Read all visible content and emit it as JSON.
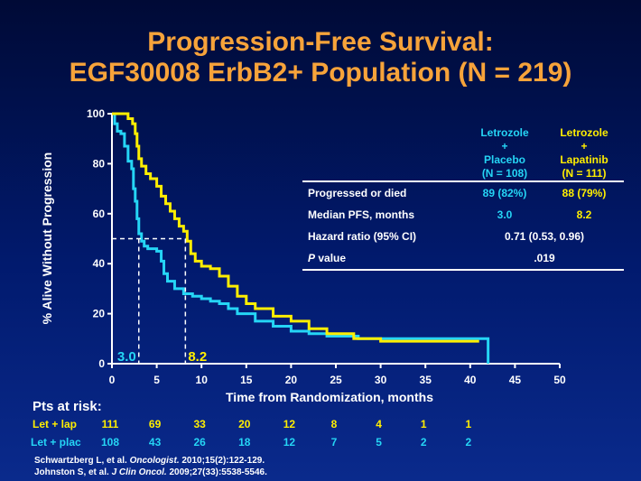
{
  "title": {
    "line1": "Progression-Free Survival:",
    "line2": "EGF30008 ErbB2+ Population (N = 219)"
  },
  "colors": {
    "placebo": "#25d5f5",
    "lapatinib": "#ffee00",
    "title": "#f7a33a"
  },
  "chart_data": {
    "type": "line",
    "xlabel": "Time from Randomization, months",
    "ylabel": "% Alive Without Progression",
    "xlim": [
      0,
      50
    ],
    "ylim": [
      0,
      100
    ],
    "xticks": [
      "0",
      "5",
      "10",
      "15",
      "20",
      "25",
      "30",
      "35",
      "40",
      "45",
      "50"
    ],
    "yticks": [
      "0",
      "20",
      "40",
      "60",
      "80",
      "100"
    ],
    "grid": false,
    "median_line_y": 50,
    "medians": [
      {
        "label": "3.0",
        "x": 3.0,
        "series": "Letrozole + Placebo"
      },
      {
        "label": "8.2",
        "x": 8.2,
        "series": "Letrozole + Lapatinib"
      }
    ],
    "series": [
      {
        "name": "Letrozole + Placebo",
        "color": "#25d5f5",
        "x": [
          0,
          0.3,
          0.6,
          1.0,
          1.4,
          1.8,
          2.2,
          2.4,
          2.6,
          2.8,
          3.0,
          3.3,
          3.6,
          4.0,
          4.5,
          5.0,
          5.5,
          5.8,
          6.2,
          7.0,
          8.0,
          9.0,
          10.0,
          11.0,
          12.0,
          13.0,
          14.0,
          16.0,
          18.0,
          20.0,
          22.0,
          24.0,
          27.5,
          30.0,
          35.0,
          40.0,
          42.0,
          42.0
        ],
        "y": [
          100,
          96,
          93,
          92,
          87,
          81,
          78,
          70,
          65,
          58,
          52,
          49,
          47,
          46,
          46,
          45,
          41,
          36,
          33,
          30,
          28,
          27,
          26,
          25,
          24,
          22,
          20,
          17,
          15,
          13,
          12,
          11,
          10,
          10,
          10,
          10,
          10,
          0
        ]
      },
      {
        "name": "Letrozole + Lapatinib",
        "color": "#ffee00",
        "x": [
          0,
          1.0,
          1.8,
          2.3,
          2.6,
          2.8,
          3.0,
          3.3,
          3.8,
          4.3,
          5.0,
          5.5,
          6.0,
          6.5,
          7.0,
          7.5,
          8.0,
          8.4,
          8.8,
          9.3,
          10.0,
          11.0,
          12.0,
          13.0,
          14.0,
          15.0,
          16.0,
          18.0,
          20.0,
          22.0,
          24.0,
          27.0,
          30.0,
          35.0,
          40.0,
          41.0
        ],
        "y": [
          100,
          100,
          98,
          96,
          92,
          87,
          82,
          79,
          76,
          74,
          71,
          67,
          64,
          61,
          58,
          55,
          53,
          49,
          44,
          41,
          39,
          38,
          35,
          31,
          27,
          24,
          22,
          19,
          17,
          14,
          12,
          10,
          9,
          9,
          9,
          9
        ]
      }
    ]
  },
  "stats_table": {
    "header": {
      "col1": [
        "Letrozole",
        "+",
        "Placebo",
        "(N = 108)"
      ],
      "col2": [
        "Letrozole",
        "+",
        "Lapatinib",
        "(N = 111)"
      ]
    },
    "rows": [
      {
        "label": "Progressed or died",
        "v1": "89 (82%)",
        "v2": "88 (79%)"
      },
      {
        "label": "Median PFS, months",
        "v1": "3.0",
        "v2": "8.2"
      },
      {
        "label": "Hazard ratio (95% CI)",
        "merged": "0.71 (0.53, 0.96)"
      },
      {
        "label_italic": "P",
        "label_rest": " value",
        "merged": ".019"
      }
    ]
  },
  "risk": {
    "title": "Pts at risk:",
    "lap_label": "Let + lap",
    "plac_label": "Let + plac",
    "lap_values": [
      "111",
      "69",
      "33",
      "20",
      "12",
      "8",
      "4",
      "1",
      "1"
    ],
    "plac_values": [
      "108",
      "43",
      "26",
      "18",
      "12",
      "7",
      "5",
      "2",
      "2"
    ]
  },
  "references": {
    "ref1_a": "Schwartzberg L, et al. ",
    "ref1_journal": "Oncologist.",
    "ref1_b": " 2010;15(2):122-129.",
    "ref2_a": "Johnston S, et al. ",
    "ref2_journal": "J Clin Oncol.",
    "ref2_b": " 2009;27(33):5538-5546."
  }
}
